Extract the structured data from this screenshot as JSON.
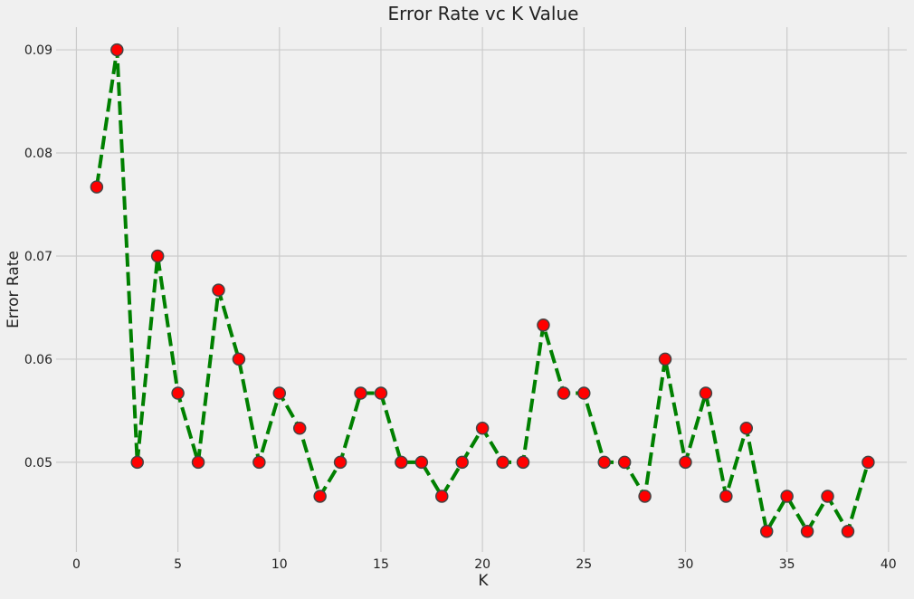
{
  "chart_data": {
    "type": "line",
    "title": "Error Rate vc K Value",
    "xlabel": "K",
    "ylabel": "Error Rate",
    "xlim": [
      -1,
      40.9
    ],
    "ylim": [
      0.0413,
      0.0922
    ],
    "xticks": [
      0,
      5,
      10,
      15,
      20,
      25,
      30,
      35,
      40
    ],
    "yticks": [
      0.05,
      0.06,
      0.07,
      0.08,
      0.09
    ],
    "ytick_labels": [
      "0.05",
      "0.06",
      "0.07",
      "0.08",
      "0.09"
    ],
    "grid": true,
    "line_color": "#008000",
    "line_style": "dashed",
    "marker": "circle",
    "marker_color": "#ff0000",
    "marker_edge_color": "#444444",
    "background_color": "#f0f0f0",
    "grid_color": "#cbcbcb",
    "series": [
      {
        "x": [
          1,
          2,
          3,
          4,
          5,
          6,
          7,
          8,
          9,
          10,
          11,
          12,
          13,
          14,
          15,
          16,
          17,
          18,
          19,
          20,
          21,
          22,
          23,
          24,
          25,
          26,
          27,
          28,
          29,
          30,
          31,
          32,
          33,
          34,
          35,
          36,
          37,
          38,
          39
        ],
        "values": [
          0.0767,
          0.09,
          0.05,
          0.07,
          0.0567,
          0.05,
          0.0667,
          0.06,
          0.05,
          0.0567,
          0.0533,
          0.0467,
          0.05,
          0.0567,
          0.0567,
          0.05,
          0.05,
          0.0467,
          0.05,
          0.0533,
          0.05,
          0.05,
          0.0633,
          0.0567,
          0.0567,
          0.05,
          0.05,
          0.0467,
          0.06,
          0.05,
          0.0567,
          0.0467,
          0.0533,
          0.0433,
          0.0467,
          0.0433,
          0.0467,
          0.0433,
          0.05
        ]
      }
    ]
  }
}
